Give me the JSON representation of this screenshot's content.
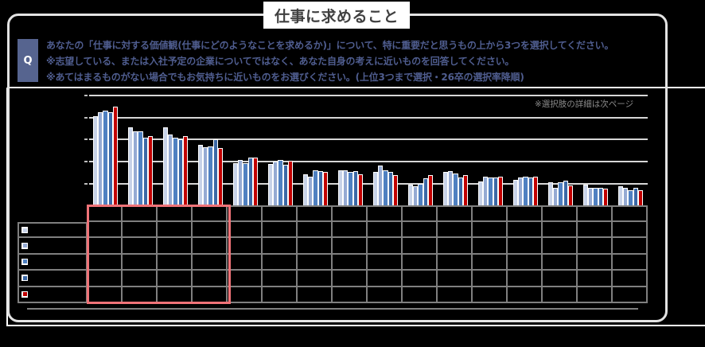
{
  "title": "仕事に求めること",
  "question": {
    "badge": "Q",
    "lines": [
      "あなたの「仕事に対する価値観(仕事にどのようなことを求めるか)」について、特に重要だと思うもの上から3つを選択してください。",
      "※志望している、または入社予定の企業についてではなく、あなた自身の考えに近いものを回答してください。",
      "※あてはまるものがない場合でもお気持ちに近いものをお選びください。(上位3つまで選択・26卒の選択率降順)"
    ],
    "note": "※選択肢の詳細は次ページ"
  },
  "colors": {
    "question_accent": "#56648f",
    "highlight": "#f07378",
    "gridline": "#d6d6d6",
    "table_border": "#7f7f7f"
  },
  "chart_data": {
    "type": "bar",
    "title": "仕事に求めること",
    "xlabel": "",
    "ylabel": "",
    "ylim": [
      0,
      50
    ],
    "grid": true,
    "gridline_values": [
      10,
      20,
      30,
      40,
      50
    ],
    "legend_position": "table-left",
    "annotations": [
      "※選択肢の詳細は次ページ"
    ],
    "highlight_categories": [
      0,
      1,
      2,
      3
    ],
    "categories": [
      "",
      "",
      "",
      "",
      "",
      "",
      "",
      "",
      "",
      "",
      "",
      "",
      "",
      "",
      "",
      ""
    ],
    "series": [
      {
        "name": "",
        "color": "#c7d2e8",
        "values": [
          40.6,
          35.5,
          35.5,
          27.6,
          19.3,
          18.9,
          14.3,
          16.0,
          15.3,
          9.4,
          15.3,
          11.1,
          11.6,
          10.8,
          9.4,
          8.9
        ]
      },
      {
        "name": "",
        "color": "#95aad3",
        "values": [
          42.3,
          33.9,
          32.3,
          26.4,
          20.6,
          20.0,
          13.1,
          16.0,
          18.2,
          8.7,
          15.8,
          13.1,
          12.9,
          8.1,
          8.3,
          8.1
        ]
      },
      {
        "name": "",
        "color": "#4f80c1",
        "values": [
          43.1,
          33.9,
          30.9,
          26.9,
          19.5,
          20.8,
          16.1,
          15.2,
          16.0,
          9.8,
          14.5,
          12.7,
          13.3,
          10.7,
          8.3,
          6.9
        ]
      },
      {
        "name": "",
        "color": "#3b68a6",
        "values": [
          42.4,
          30.9,
          30.0,
          30.0,
          21.9,
          18.7,
          15.7,
          15.8,
          15.2,
          12.3,
          12.9,
          13.0,
          12.9,
          11.3,
          8.0,
          8.0
        ]
      },
      {
        "name": "",
        "color": "#c00000",
        "values": [
          44.8,
          31.6,
          31.6,
          26.2,
          21.9,
          20.4,
          15.5,
          14.1,
          14.0,
          14.0,
          14.0,
          13.1,
          13.1,
          9.2,
          7.6,
          6.9
        ]
      }
    ]
  }
}
